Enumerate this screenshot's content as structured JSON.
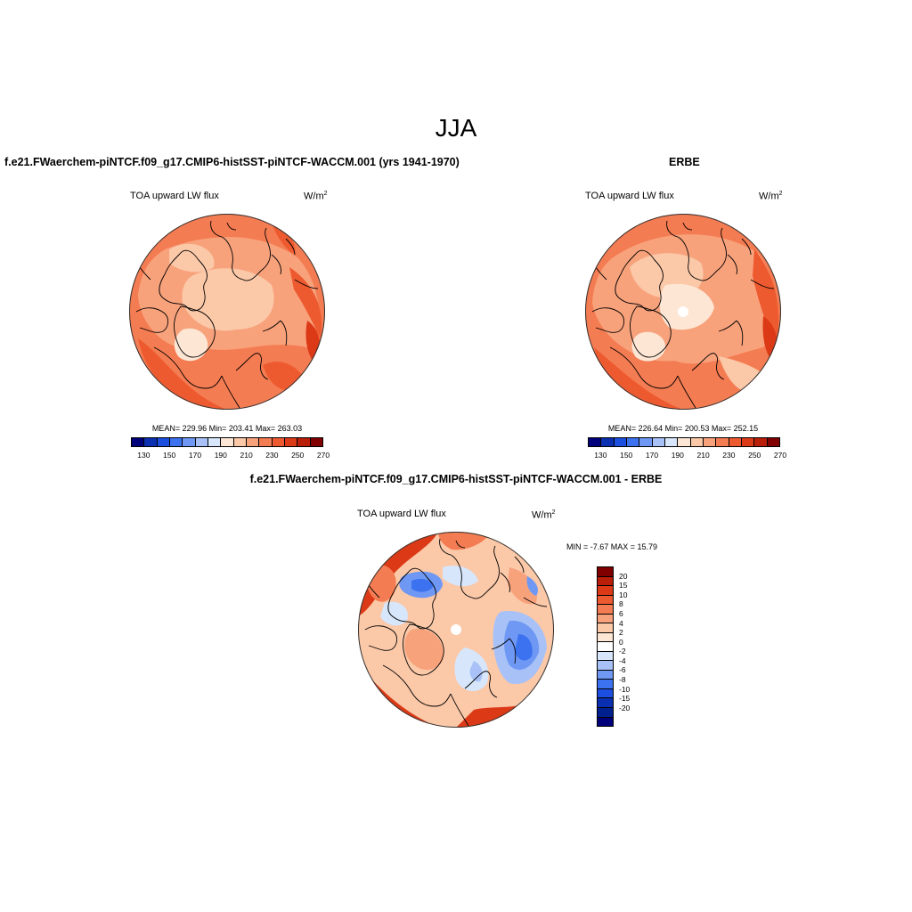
{
  "title": "JJA",
  "panels": {
    "model": {
      "title": "f.e21.FWaerchem-piNTCF.f09_g17.CMIP6-histSST-piNTCF-WACCM.001 (yrs 1941-1970)",
      "variable": "TOA upward LW flux",
      "units": "W/m",
      "units_exp": "2",
      "stats": "MEAN= 229.96  Min= 203.41  Max= 263.03"
    },
    "obs": {
      "title": "ERBE",
      "variable": "TOA upward LW flux",
      "units": "W/m",
      "units_exp": "2",
      "stats": "MEAN= 226.64  Min= 200.53  Max= 252.15"
    },
    "diff": {
      "title": "f.e21.FWaerchem-piNTCF.f09_g17.CMIP6-histSST-piNTCF-WACCM.001 - ERBE",
      "variable": "TOA upward LW flux",
      "units": "W/m",
      "units_exp": "2",
      "stats": "MIN =  -7.67 MAX =  15.79"
    }
  },
  "abs_colorbar": {
    "colors": [
      "#00007a",
      "#0a2fb0",
      "#1c4fe0",
      "#3c72f0",
      "#6f98f4",
      "#a8c2f7",
      "#d7e6fb",
      "#fde6d4",
      "#fbc8a8",
      "#f8a27c",
      "#f47c52",
      "#ee5a30",
      "#dc3a17",
      "#b81e08",
      "#800000"
    ],
    "tick_labels": [
      "130",
      "150",
      "170",
      "190",
      "210",
      "230",
      "250",
      "270"
    ]
  },
  "diff_colorbar": {
    "colors": [
      "#800000",
      "#b81e08",
      "#dc3a17",
      "#ee5a30",
      "#f47c52",
      "#f8a27c",
      "#fbc8a8",
      "#fde6d4",
      "#ffffff",
      "#d7e6fb",
      "#a8c2f7",
      "#6f98f4",
      "#3c72f0",
      "#1c4fe0",
      "#0a2fb0",
      "#002090",
      "#00007a"
    ],
    "tick_labels": [
      "20",
      "15",
      "10",
      "8",
      "6",
      "4",
      "2",
      "0",
      "-2",
      "-4",
      "-6",
      "-8",
      "-10",
      "-15",
      "-20"
    ]
  }
}
